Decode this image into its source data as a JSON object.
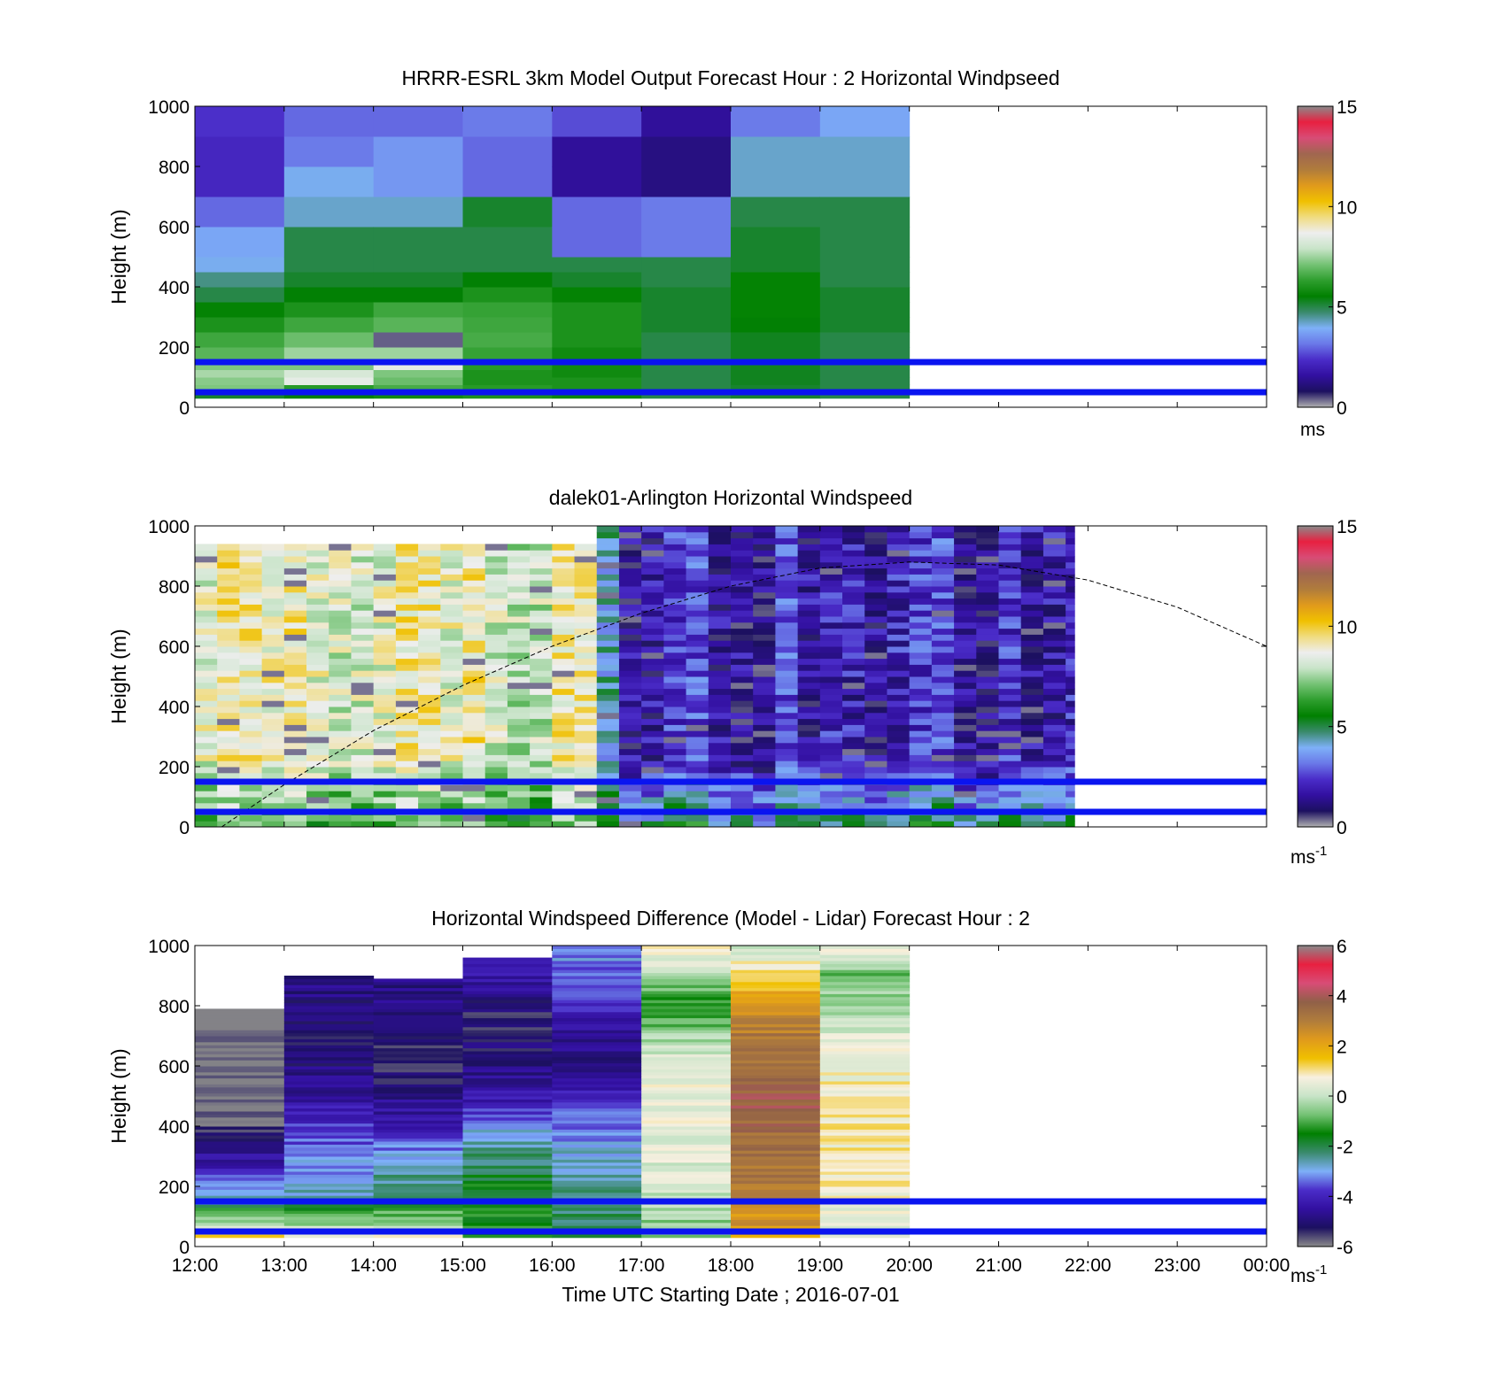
{
  "figure": {
    "xlabel": "Time UTC  Starting Date ; 2016-07-01",
    "x_ticks": [
      "12:00",
      "13:00",
      "14:00",
      "15:00",
      "16:00",
      "17:00",
      "18:00",
      "19:00",
      "20:00",
      "21:00",
      "22:00",
      "23:00",
      "00:00"
    ]
  },
  "colors": {
    "reference_line": "#0a14f0",
    "speed_colormap": [
      "#b0b0b0",
      "#1c1060",
      "#3210a0",
      "#4a2cc8",
      "#6a78e8",
      "#7eb0f8",
      "#3a8a6c",
      "#008000",
      "#2e9e2e",
      "#74c274",
      "#c8e4c8",
      "#eeeeee",
      "#f0dc80",
      "#f0c000",
      "#e09a1c",
      "#b07c3c",
      "#a06650",
      "#d84c76",
      "#e82040",
      "#8a8a8a"
    ],
    "diff_colormap": [
      "#8a8a8a",
      "#1c1060",
      "#3210a0",
      "#4a2cc8",
      "#7eb0f8",
      "#3a8a6c",
      "#008000",
      "#74c274",
      "#c8e4c8",
      "#f8f0e0",
      "#f0c000",
      "#e09a1c",
      "#b07c3c",
      "#906048",
      "#d84c76",
      "#e82040",
      "#8a8a8a"
    ]
  },
  "chart_data": [
    {
      "type": "heatmap",
      "title": "HRRR-ESRL 3km Model Output   Forecast Hour : 2 Horizontal Windpseed",
      "xlabel": "",
      "ylabel": "Height (m)",
      "ylim": [
        0,
        1000
      ],
      "y_ticks": [
        "0",
        "200",
        "400",
        "600",
        "800",
        "1000"
      ],
      "x_hours": [
        12,
        13,
        14,
        15,
        16,
        17,
        18,
        19,
        20
      ],
      "height_edges": [
        30,
        50,
        75,
        100,
        125,
        150,
        200,
        250,
        300,
        350,
        400,
        450,
        500,
        600,
        700,
        800,
        900,
        1000
      ],
      "values": [
        [
          5.2,
          7.2,
          7.3,
          7.6,
          7.2,
          6.8,
          6.5,
          6.0,
          5.6,
          5.0,
          4.6,
          4.0,
          3.8,
          3.0,
          2.2,
          2.2,
          2.4,
          2.4
        ],
        [
          5.5,
          6.2,
          8.5,
          8.2,
          7.2,
          7.5,
          7.0,
          6.5,
          6.0,
          5.5,
          5.2,
          5.0,
          5.0,
          4.2,
          4.0,
          3.2,
          3.0,
          3.0
        ],
        [
          5.8,
          6.6,
          7.0,
          7.2,
          8.5,
          7.5,
          0.4,
          6.8,
          6.5,
          5.5,
          5.2,
          5.0,
          5.0,
          4.2,
          3.6,
          3.6,
          3.0,
          3.0
        ],
        [
          6.0,
          6.2,
          6.0,
          6.0,
          6.2,
          6.4,
          6.6,
          6.5,
          6.4,
          6.0,
          5.5,
          5.0,
          5.0,
          5.2,
          3.0,
          3.0,
          3.2,
          3.2
        ],
        [
          5.7,
          6.0,
          6.0,
          5.8,
          5.8,
          5.8,
          6.0,
          6.0,
          6.0,
          5.6,
          5.2,
          5.0,
          3.0,
          3.0,
          1.5,
          1.5,
          2.7,
          3.2
        ],
        [
          5.0,
          5.0,
          5.0,
          5.0,
          5.0,
          5.0,
          5.0,
          5.2,
          5.2,
          5.2,
          5.0,
          5.0,
          3.2,
          3.2,
          1.2,
          1.2,
          1.5,
          2.2
        ],
        [
          5.2,
          5.2,
          5.3,
          5.3,
          5.3,
          5.3,
          5.3,
          5.5,
          5.6,
          5.6,
          5.6,
          5.2,
          5.2,
          5.0,
          4.2,
          4.2,
          3.2,
          2.6
        ],
        [
          5.0,
          5.0,
          5.0,
          5.0,
          5.0,
          5.0,
          5.0,
          5.2,
          5.2,
          5.2,
          5.0,
          5.0,
          5.0,
          5.0,
          4.2,
          4.2,
          3.8,
          3.8
        ]
      ],
      "cbar_ticks": [
        "0",
        "5",
        "10",
        "15"
      ],
      "cbar_label": "ms",
      "reference_lines_m": [
        150,
        50
      ]
    },
    {
      "type": "heatmap",
      "title": "dalek01-Arlington  Horizontal Windspeed",
      "xlabel": "",
      "ylabel": "Height (m)",
      "ylim": [
        0,
        1000
      ],
      "y_ticks": [
        "0",
        "200",
        "400",
        "600",
        "800",
        "1000"
      ],
      "x_range_hours": [
        12,
        21.85
      ],
      "profile_step_hours": 0.25,
      "height_step_m": 20,
      "regimes": [
        {
          "start_hour": 12.0,
          "end_hour": 16.4,
          "low_speed": 6.4,
          "upper_speed": 8.5,
          "top_m": 940
        },
        {
          "start_hour": 16.4,
          "end_hour": 16.65,
          "low_speed": 6.2,
          "upper_speed": 5.0,
          "top_m": 1000
        },
        {
          "start_hour": 16.65,
          "end_hour": 21.85,
          "low_speed": 4.8,
          "upper_speed": 2.0,
          "top_m": 1000
        }
      ],
      "sun_curve": {
        "hours": [
          12.3,
          13.0,
          14.0,
          15.0,
          16.0,
          17.0,
          18.0,
          19.0,
          20.0,
          21.0,
          22.0,
          23.0,
          24.0
        ],
        "heights_m": [
          0,
          140,
          320,
          470,
          600,
          710,
          800,
          860,
          880,
          870,
          820,
          730,
          600
        ]
      },
      "cbar_ticks": [
        "0",
        "5",
        "10",
        "15"
      ],
      "cbar_label": "ms",
      "cbar_label_sup": "-1",
      "reference_lines_m": [
        150,
        50
      ]
    },
    {
      "type": "heatmap",
      "title": "Horizontal Windspeed Difference (Model - Lidar) Forecast Hour : 2",
      "xlabel": "Time UTC  Starting Date ; 2016-07-01",
      "ylabel": "Height (m)",
      "ylim": [
        0,
        1000
      ],
      "y_ticks": [
        "0",
        "200",
        "400",
        "600",
        "800",
        "1000"
      ],
      "columns": [
        {
          "hour": 12,
          "top_m": 790,
          "profile": [
            [
              0,
              2.5
            ],
            [
              150,
              -2.6
            ],
            [
              270,
              -4.2
            ],
            [
              350,
              -5.3
            ],
            [
              440,
              -6.0
            ],
            [
              790,
              -6.0
            ]
          ]
        },
        {
          "hour": 13,
          "top_m": 900,
          "profile": [
            [
              0,
              1.6
            ],
            [
              150,
              -2.6
            ],
            [
              400,
              -3.8
            ],
            [
              520,
              -4.6
            ],
            [
              700,
              -5.2
            ],
            [
              900,
              -4.8
            ]
          ]
        },
        {
          "hour": 14,
          "top_m": 890,
          "profile": [
            [
              0,
              1.0
            ],
            [
              160,
              -2.0
            ],
            [
              300,
              -3.0
            ],
            [
              420,
              -4.4
            ],
            [
              600,
              -5.4
            ],
            [
              890,
              -4.7
            ]
          ]
        },
        {
          "hour": 15,
          "top_m": 960,
          "profile": [
            [
              0,
              -1.4
            ],
            [
              200,
              -1.6
            ],
            [
              400,
              -3.2
            ],
            [
              520,
              -4.6
            ],
            [
              750,
              -5.4
            ],
            [
              960,
              -4.0
            ]
          ]
        },
        {
          "hour": 16,
          "top_m": 1000,
          "profile": [
            [
              0,
              -2.0
            ],
            [
              200,
              -2.4
            ],
            [
              420,
              -3.4
            ],
            [
              600,
              -5.0
            ],
            [
              800,
              -4.0
            ],
            [
              1000,
              -3.0
            ]
          ]
        },
        {
          "hour": 17,
          "top_m": 1000,
          "profile": [
            [
              0,
              -1.0
            ],
            [
              200,
              0.2
            ],
            [
              500,
              0.6
            ],
            [
              650,
              0.0
            ],
            [
              800,
              -1.4
            ],
            [
              1000,
              1.0
            ]
          ]
        },
        {
          "hour": 18,
          "top_m": 1000,
          "profile": [
            [
              0,
              2.0
            ],
            [
              200,
              3.0
            ],
            [
              500,
              3.8
            ],
            [
              750,
              2.8
            ],
            [
              900,
              1.2
            ],
            [
              1000,
              0.0
            ]
          ]
        },
        {
          "hour": 19,
          "top_m": 1000,
          "profile": [
            [
              0,
              0.0
            ],
            [
              200,
              0.8
            ],
            [
              500,
              0.9
            ],
            [
              700,
              0.3
            ],
            [
              900,
              -0.8
            ],
            [
              1000,
              0.9
            ]
          ]
        }
      ],
      "cbar_ticks": [
        "-6",
        "-4",
        "-2",
        "0",
        "2",
        "4",
        "6"
      ],
      "cbar_label": "ms",
      "cbar_label_sup": "-1",
      "reference_lines_m": [
        150,
        50
      ]
    }
  ]
}
